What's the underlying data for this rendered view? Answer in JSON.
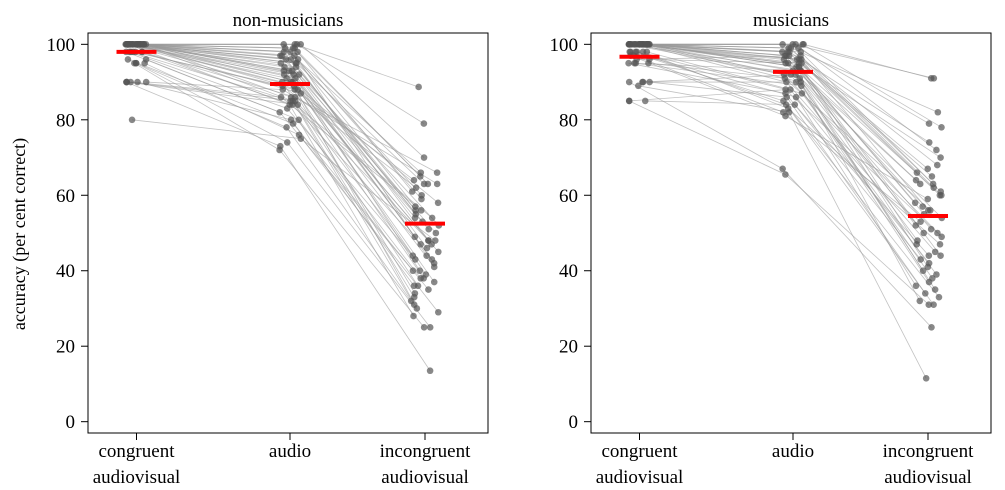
{
  "chart_data": {
    "type": "scatter",
    "ylabel": "accuracy (per cent correct)",
    "yticks": [
      0,
      20,
      40,
      60,
      80,
      100
    ],
    "ylim": [
      -3,
      103
    ],
    "categories": [
      {
        "line1": "congruent",
        "line2": "audiovisual"
      },
      {
        "line1": "audio",
        "line2": ""
      },
      {
        "line1": "incongruent",
        "line2": "audiovisual"
      }
    ],
    "mean_color": "#ff0000",
    "point_color": "#555555",
    "line_color": "#9a9a9a",
    "panels": [
      {
        "title": "non-musicians",
        "means": [
          98,
          89.5,
          52.5
        ],
        "participants": [
          [
            100,
            100,
            79
          ],
          [
            100,
            99,
            65
          ],
          [
            100,
            100,
            57
          ],
          [
            100,
            98,
            60
          ],
          [
            100,
            97,
            50
          ],
          [
            100,
            96,
            46
          ],
          [
            100,
            100,
            88.7
          ],
          [
            100,
            95,
            63
          ],
          [
            100,
            94,
            55
          ],
          [
            100,
            93,
            48
          ],
          [
            100,
            92,
            43
          ],
          [
            100,
            91,
            40
          ],
          [
            100,
            90,
            36
          ],
          [
            100,
            89,
            30
          ],
          [
            100,
            99,
            66
          ],
          [
            100,
            98,
            61
          ],
          [
            100,
            96,
            53
          ],
          [
            100,
            95,
            47
          ],
          [
            100,
            93,
            42
          ],
          [
            100,
            92,
            38
          ],
          [
            100,
            91,
            34
          ],
          [
            100,
            100,
            70
          ],
          [
            100,
            97,
            59
          ],
          [
            100,
            94,
            51
          ],
          [
            100,
            90,
            45
          ],
          [
            100,
            88,
            41
          ],
          [
            100,
            87,
            37
          ],
          [
            100,
            86,
            33
          ],
          [
            100,
            85,
            31
          ],
          [
            100,
            84,
            28
          ],
          [
            100,
            99,
            63
          ],
          [
            100,
            98,
            56
          ],
          [
            100,
            97,
            52
          ],
          [
            100,
            96,
            44
          ],
          [
            100,
            95,
            39
          ],
          [
            100,
            93,
            49
          ],
          [
            100,
            92,
            54
          ],
          [
            100,
            90,
            58
          ],
          [
            98,
            89,
            62
          ],
          [
            98,
            88,
            64
          ],
          [
            98,
            86,
            66
          ],
          [
            98,
            85,
            54
          ],
          [
            98,
            84,
            47
          ],
          [
            98,
            83,
            43
          ],
          [
            98,
            82,
            40
          ],
          [
            96,
            80,
            38
          ],
          [
            96,
            79,
            35
          ],
          [
            95,
            78,
            32
          ],
          [
            95,
            76,
            29
          ],
          [
            95,
            74,
            25
          ],
          [
            95,
            72,
            25
          ],
          [
            90,
            88,
            63
          ],
          [
            90,
            86,
            56
          ],
          [
            90,
            85,
            48
          ],
          [
            90,
            84,
            44
          ],
          [
            90,
            80,
            36
          ],
          [
            90,
            73,
            13.5
          ],
          [
            80,
            75,
            48
          ]
        ]
      },
      {
        "title": "musicians",
        "means": [
          96.7,
          92.7,
          54.5
        ],
        "participants": [
          [
            100,
            100,
            91
          ],
          [
            100,
            100,
            82
          ],
          [
            100,
            99,
            79
          ],
          [
            100,
            98,
            74
          ],
          [
            100,
            97,
            70
          ],
          [
            100,
            96,
            66
          ],
          [
            100,
            95,
            64
          ],
          [
            100,
            100,
            91
          ],
          [
            100,
            99,
            62
          ],
          [
            100,
            98,
            60
          ],
          [
            100,
            97,
            58
          ],
          [
            100,
            96,
            56
          ],
          [
            100,
            95,
            54
          ],
          [
            100,
            94,
            52
          ],
          [
            100,
            93,
            50
          ],
          [
            100,
            100,
            78
          ],
          [
            100,
            99,
            68
          ],
          [
            100,
            98,
            63
          ],
          [
            100,
            97,
            57
          ],
          [
            100,
            96,
            51
          ],
          [
            100,
            95,
            47
          ],
          [
            100,
            94,
            44
          ],
          [
            100,
            93,
            41
          ],
          [
            100,
            92,
            38
          ],
          [
            100,
            91,
            35
          ],
          [
            100,
            90,
            32
          ],
          [
            100,
            100,
            72
          ],
          [
            100,
            98,
            65
          ],
          [
            100,
            96,
            60
          ],
          [
            100,
            94,
            55
          ],
          [
            100,
            92,
            49
          ],
          [
            100,
            90,
            45
          ],
          [
            98,
            88,
            42
          ],
          [
            98,
            87,
            39
          ],
          [
            98,
            86,
            36
          ],
          [
            98,
            85,
            33
          ],
          [
            98,
            84,
            31
          ],
          [
            98,
            83,
            47
          ],
          [
            97,
            82,
            53
          ],
          [
            97,
            81,
            59
          ],
          [
            96,
            97,
            61
          ],
          [
            96,
            95,
            67
          ],
          [
            95,
            93,
            63
          ],
          [
            95,
            91,
            56
          ],
          [
            95,
            89,
            48
          ],
          [
            95,
            87,
            43
          ],
          [
            90,
            92,
            40
          ],
          [
            90,
            90,
            37
          ],
          [
            90,
            86,
            34
          ],
          [
            90,
            67,
            25
          ],
          [
            89,
            82,
            11.5
          ],
          [
            85,
            65.5,
            31
          ],
          [
            85,
            88,
            50
          ],
          [
            85,
            84,
            44
          ]
        ]
      }
    ]
  }
}
